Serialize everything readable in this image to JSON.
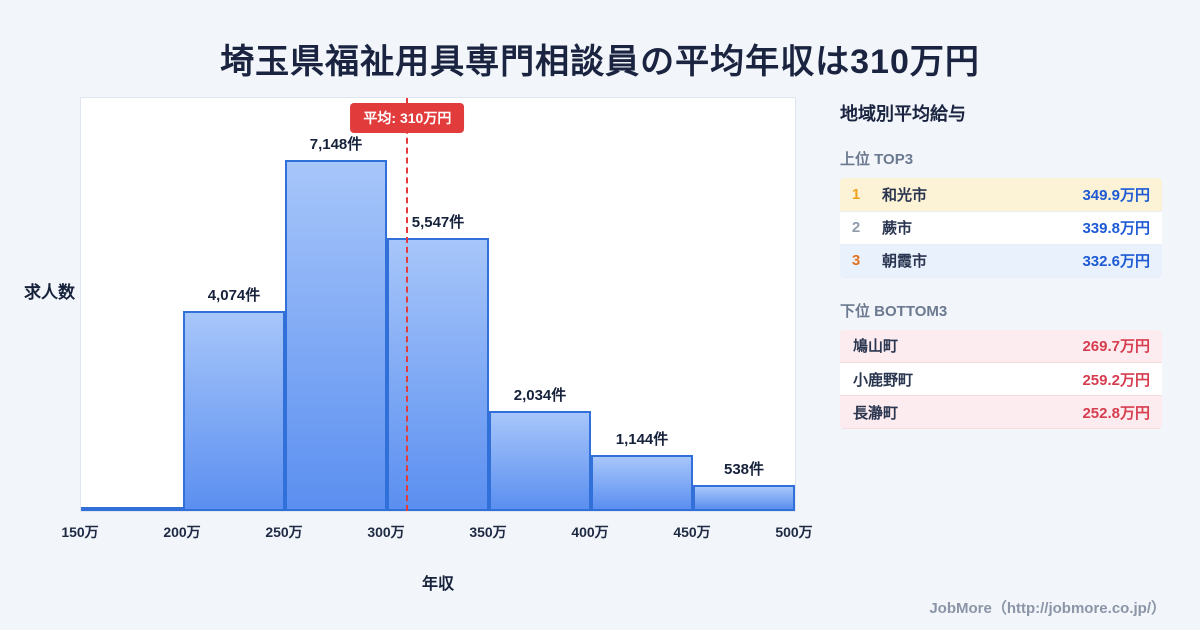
{
  "page": {
    "title": "埼玉県福祉用具専門相談員の平均年収は310万円",
    "footer": "JobMore（http://jobmore.co.jp/）"
  },
  "chart_data": {
    "type": "bar",
    "title": "埼玉県福祉用具専門相談員の平均年収は310万円",
    "xlabel": "年収",
    "ylabel": "求人数",
    "x_range": [
      150,
      500
    ],
    "x_ticks": [
      "150万",
      "200万",
      "250万",
      "300万",
      "350万",
      "400万",
      "450万",
      "500万"
    ],
    "ylim": [
      0,
      8400
    ],
    "grid": false,
    "legend": "none",
    "bins": [
      {
        "range": [
          150,
          200
        ],
        "count": 80,
        "label": ""
      },
      {
        "range": [
          200,
          250
        ],
        "count": 4074,
        "label": "4,074件"
      },
      {
        "range": [
          250,
          300
        ],
        "count": 7148,
        "label": "7,148件"
      },
      {
        "range": [
          300,
          350
        ],
        "count": 5547,
        "label": "5,547件"
      },
      {
        "range": [
          350,
          400
        ],
        "count": 2034,
        "label": "2,034件"
      },
      {
        "range": [
          400,
          450
        ],
        "count": 1144,
        "label": "1,144件"
      },
      {
        "range": [
          450,
          500
        ],
        "count": 538,
        "label": "538件"
      }
    ],
    "average": {
      "value": 310,
      "label": "平均: 310万円"
    },
    "colors": {
      "bar_top": "#a7c6fa",
      "bar_bottom": "#5b8ff0",
      "bar_border": "#3170d8",
      "average_line": "#e23b3b",
      "average_badge_bg": "#e23b3b",
      "average_badge_text": "#ffffff"
    }
  },
  "side_panel": {
    "title": "地域別平均給与",
    "top": {
      "heading": "上位 TOP3",
      "value_color": "#1d5ad3",
      "rank_colors": [
        "#f0a11b",
        "#8f9aab",
        "#e2711d"
      ],
      "row_backgrounds": [
        "#fcf3d7",
        "#ffffff",
        "#e9f1fc"
      ],
      "rows": [
        {
          "rank": "1",
          "name": "和光市",
          "value": "349.9万円"
        },
        {
          "rank": "2",
          "name": "蕨市",
          "value": "339.8万円"
        },
        {
          "rank": "3",
          "name": "朝霞市",
          "value": "332.6万円"
        }
      ]
    },
    "bottom": {
      "heading": "下位 BOTTOM3",
      "value_color": "#d63d4f",
      "row_backgrounds": [
        "#fdecef",
        "#ffffff",
        "#fdecef"
      ],
      "rows": [
        {
          "name": "鳩山町",
          "value": "269.7万円"
        },
        {
          "name": "小鹿野町",
          "value": "259.2万円"
        },
        {
          "name": "長瀞町",
          "value": "252.8万円"
        }
      ]
    }
  }
}
